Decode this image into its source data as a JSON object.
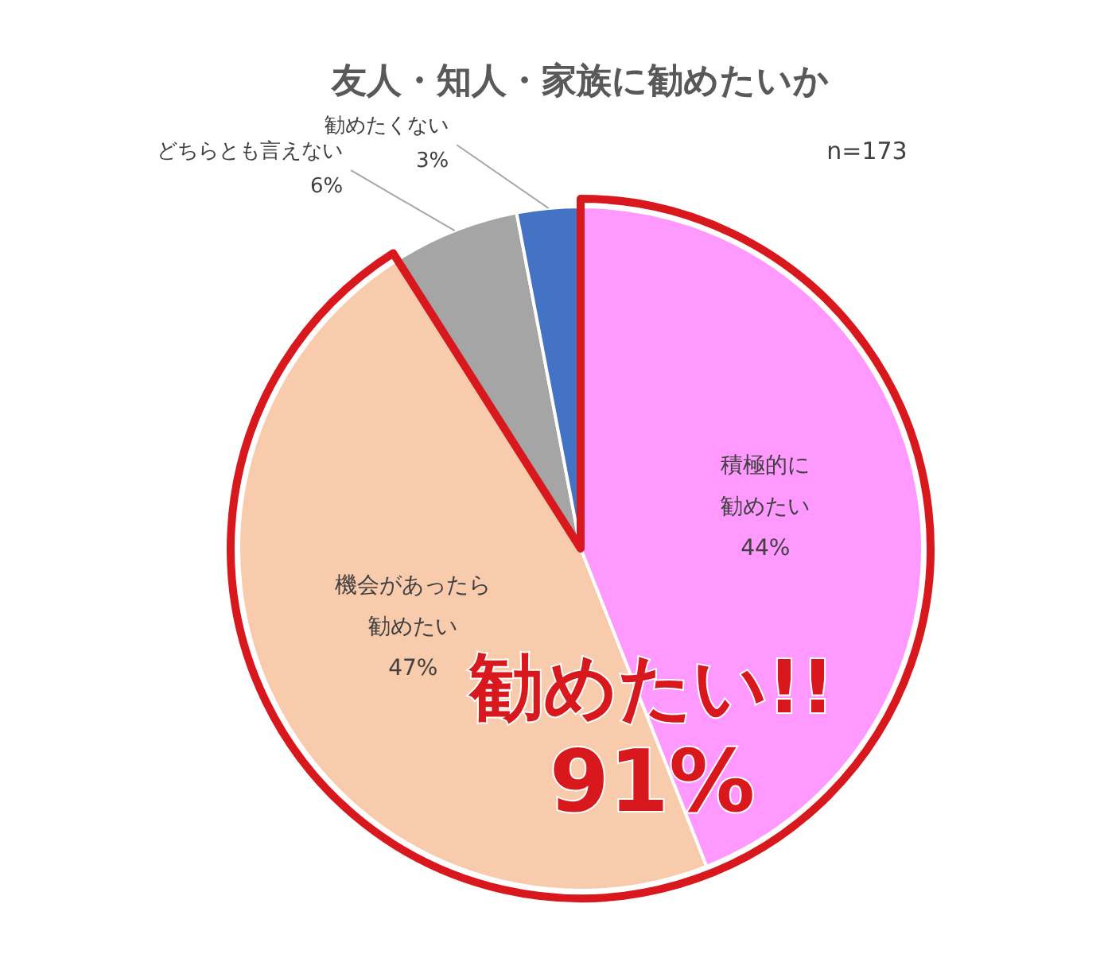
{
  "chart_data": {
    "type": "pie",
    "title": "友人・知人・家族に勧めたいか",
    "categories": [
      "積極的に勧めたい",
      "機会があったら勧めたい",
      "どちらとも言えない",
      "勧めたくない"
    ],
    "values": [
      44,
      47,
      6,
      3
    ],
    "colors": [
      "#ff99ff",
      "#f8cbad",
      "#a5a5a5",
      "#4472c4"
    ],
    "value_labels": [
      "44%",
      "47%",
      "6%",
      "3%"
    ],
    "annotations": [
      "n=173",
      "勧めたい!!",
      "91%"
    ]
  }
}
